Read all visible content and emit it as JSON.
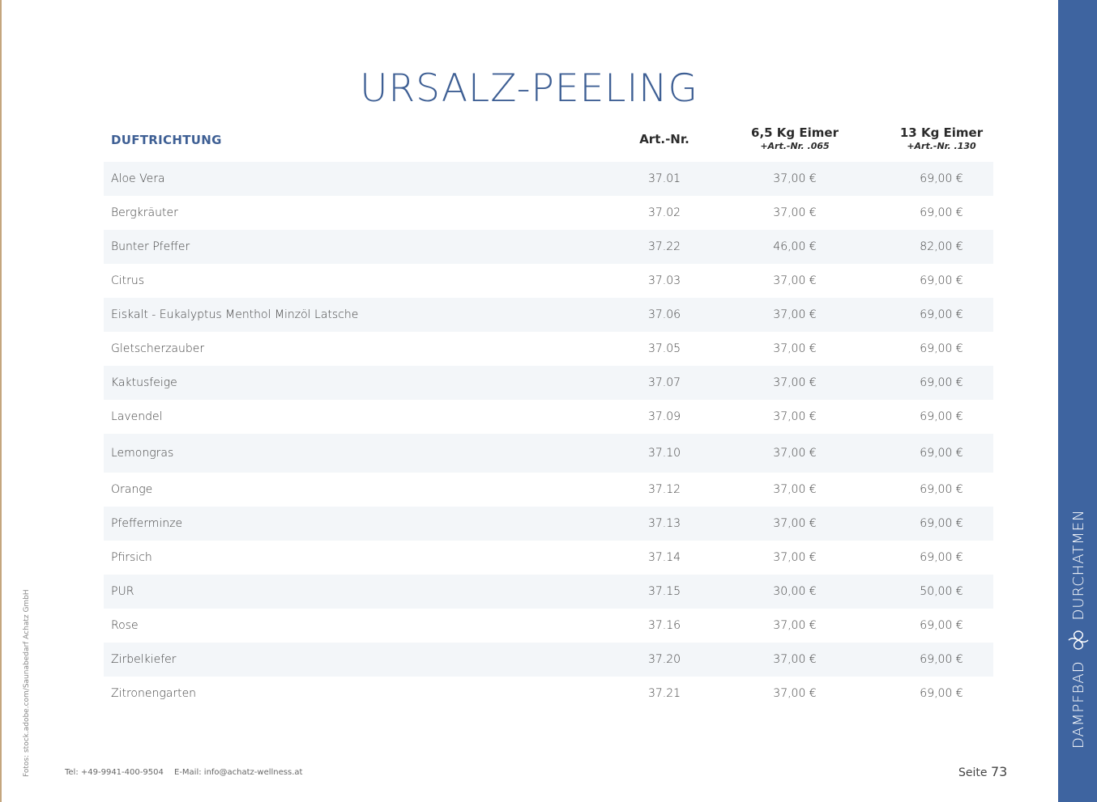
{
  "title": "URSALZ-PEELING",
  "table": {
    "headers": {
      "name": "DUFTRICHTUNG",
      "art": "Art.-Nr.",
      "p1_main": "6,5 Kg Eimer",
      "p1_sub": "+Art.-Nr. .065",
      "p2_main": "13 Kg Eimer",
      "p2_sub": "+Art.-Nr. .130"
    },
    "rows": [
      {
        "name": "Aloe Vera",
        "art": "37.01",
        "p1": "37,00 €",
        "p2": "69,00 €"
      },
      {
        "name": "Bergkräuter",
        "art": "37.02",
        "p1": "37,00 €",
        "p2": "69,00 €"
      },
      {
        "name": "Bunter Pfeffer",
        "art": "37.22",
        "p1": "46,00 €",
        "p2": "82,00 €"
      },
      {
        "name": "Citrus",
        "art": "37.03",
        "p1": "37,00 €",
        "p2": "69,00 €"
      },
      {
        "name": "Eiskalt - Eukalyptus Menthol Minzöl Latsche",
        "art": "37.06",
        "p1": "37,00 €",
        "p2": "69,00 €"
      },
      {
        "name": "Gletscherzauber",
        "art": "37.05",
        "p1": "37,00 €",
        "p2": "69,00 €"
      },
      {
        "name": "Kaktusfeige",
        "art": "37.07",
        "p1": "37,00 €",
        "p2": "69,00 €"
      },
      {
        "name": "Lavendel",
        "art": "37.09",
        "p1": "37,00 €",
        "p2": "69,00 €"
      },
      {
        "name": "Lemongras",
        "art": "37.10",
        "p1": "37,00 €",
        "p2": "69,00 €"
      },
      {
        "name": "Orange",
        "art": "37.12",
        "p1": "37,00 €",
        "p2": "69,00 €"
      },
      {
        "name": "Pfefferminze",
        "art": "37.13",
        "p1": "37,00 €",
        "p2": "69,00 €"
      },
      {
        "name": "Pfirsich",
        "art": "37.14",
        "p1": "37,00 €",
        "p2": "69,00 €"
      },
      {
        "name": "PUR",
        "art": "37.15",
        "p1": "30,00 €",
        "p2": "50,00 €"
      },
      {
        "name": "Rose",
        "art": "37.16",
        "p1": "37,00 €",
        "p2": "69,00 €"
      },
      {
        "name": "Zirbelkiefer",
        "art": "37.20",
        "p1": "37,00 €",
        "p2": "69,00 €"
      },
      {
        "name": "Zitronengarten",
        "art": "37.21",
        "p1": "37,00 €",
        "p2": "69,00 €"
      }
    ]
  },
  "footer": {
    "tel": "Tel: +49-9941-400-9504",
    "email": "E-Mail: info@achatz-wellness.at",
    "page_label": "Seite",
    "page_number": "73"
  },
  "credit": "Fotos: stock.adobe.com/Saunabedarf Achatz GmbH",
  "sidebar": {
    "left_word": "DAMPFBAD",
    "right_word": "DURCHATMEN",
    "icon": "leaf-ornament-icon"
  },
  "colors": {
    "accent": "#3e5f94",
    "sidebar": "#3e64a0",
    "row_shade": "#f3f6f9"
  }
}
